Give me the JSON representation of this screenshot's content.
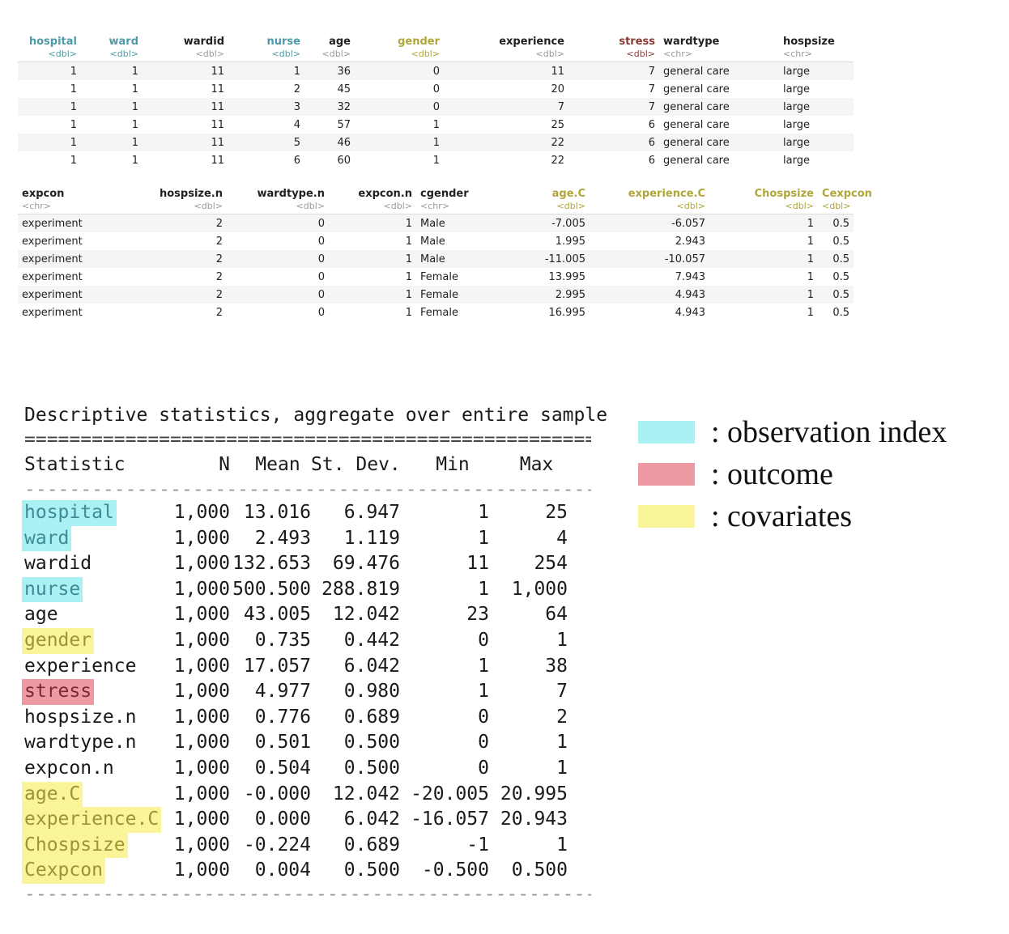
{
  "table1": {
    "columns": [
      {
        "name": "hospital",
        "type": "<dbl>",
        "hl": "obs",
        "align": "r"
      },
      {
        "name": "ward",
        "type": "<dbl>",
        "hl": "obs",
        "align": "r"
      },
      {
        "name": "wardid",
        "type": "<dbl>",
        "hl": "",
        "align": "r"
      },
      {
        "name": "nurse",
        "type": "<dbl>",
        "hl": "obs",
        "align": "r"
      },
      {
        "name": "age",
        "type": "<dbl>",
        "hl": "",
        "align": "r"
      },
      {
        "name": "gender",
        "type": "<dbl>",
        "hl": "cov",
        "align": "r"
      },
      {
        "name": "experience",
        "type": "<dbl>",
        "hl": "",
        "align": "r"
      },
      {
        "name": "stress",
        "type": "<dbl>",
        "hl": "out",
        "align": "r"
      },
      {
        "name": "wardtype",
        "type": "<chr>",
        "hl": "",
        "align": "l"
      },
      {
        "name": "hospsize",
        "type": "<chr>",
        "hl": "",
        "align": "l"
      }
    ],
    "rows": [
      [
        "1",
        "1",
        "11",
        "1",
        "36",
        "0",
        "11",
        "7",
        "general care",
        "large"
      ],
      [
        "1",
        "1",
        "11",
        "2",
        "45",
        "0",
        "20",
        "7",
        "general care",
        "large"
      ],
      [
        "1",
        "1",
        "11",
        "3",
        "32",
        "0",
        "7",
        "7",
        "general care",
        "large"
      ],
      [
        "1",
        "1",
        "11",
        "4",
        "57",
        "1",
        "25",
        "6",
        "general care",
        "large"
      ],
      [
        "1",
        "1",
        "11",
        "5",
        "46",
        "1",
        "22",
        "6",
        "general care",
        "large"
      ],
      [
        "1",
        "1",
        "11",
        "6",
        "60",
        "1",
        "22",
        "6",
        "general care",
        "large"
      ]
    ]
  },
  "table2": {
    "columns": [
      {
        "name": "expcon",
        "type": "<chr>",
        "hl": "",
        "align": "l"
      },
      {
        "name": "hospsize.n",
        "type": "<dbl>",
        "hl": "",
        "align": "r"
      },
      {
        "name": "wardtype.n",
        "type": "<dbl>",
        "hl": "",
        "align": "r"
      },
      {
        "name": "expcon.n",
        "type": "<dbl>",
        "hl": "",
        "align": "r"
      },
      {
        "name": "cgender",
        "type": "<chr>",
        "hl": "",
        "align": "l"
      },
      {
        "name": "age.C",
        "type": "<dbl>",
        "hl": "cov",
        "align": "r"
      },
      {
        "name": "experience.C",
        "type": "<dbl>",
        "hl": "cov",
        "align": "r"
      },
      {
        "name": "Chospsize",
        "type": "<dbl>",
        "hl": "cov",
        "align": "r"
      },
      {
        "name": "Cexpcon",
        "type": "<dbl>",
        "hl": "cov",
        "align": "r"
      }
    ],
    "rows": [
      [
        "experiment",
        "2",
        "0",
        "1",
        "Male",
        "-7.005",
        "-6.057",
        "1",
        "0.5"
      ],
      [
        "experiment",
        "2",
        "0",
        "1",
        "Male",
        "1.995",
        "2.943",
        "1",
        "0.5"
      ],
      [
        "experiment",
        "2",
        "0",
        "1",
        "Male",
        "-11.005",
        "-10.057",
        "1",
        "0.5"
      ],
      [
        "experiment",
        "2",
        "0",
        "1",
        "Female",
        "13.995",
        "7.943",
        "1",
        "0.5"
      ],
      [
        "experiment",
        "2",
        "0",
        "1",
        "Female",
        "2.995",
        "4.943",
        "1",
        "0.5"
      ],
      [
        "experiment",
        "2",
        "0",
        "1",
        "Female",
        "16.995",
        "4.943",
        "1",
        "0.5"
      ]
    ]
  },
  "stats": {
    "title": "Descriptive statistics, aggregate over entire sample",
    "double_rule": "====================================================",
    "dash_rule": "----------------------------------------------------",
    "header": [
      "Statistic",
      "N",
      "Mean",
      "St. Dev.",
      "Min",
      "Max"
    ],
    "rows": [
      {
        "name": "hospital",
        "hl": "obs",
        "vals": [
          "1,000",
          "13.016",
          "6.947",
          "1",
          "25"
        ]
      },
      {
        "name": "ward",
        "hl": "obs",
        "vals": [
          "1,000",
          "2.493",
          "1.119",
          "1",
          "4"
        ]
      },
      {
        "name": "wardid",
        "hl": "",
        "vals": [
          "1,000",
          "132.653",
          "69.476",
          "11",
          "254"
        ]
      },
      {
        "name": "nurse",
        "hl": "obs",
        "vals": [
          "1,000",
          "500.500",
          "288.819",
          "1",
          "1,000"
        ]
      },
      {
        "name": "age",
        "hl": "",
        "vals": [
          "1,000",
          "43.005",
          "12.042",
          "23",
          "64"
        ]
      },
      {
        "name": "gender",
        "hl": "cov",
        "vals": [
          "1,000",
          "0.735",
          "0.442",
          "0",
          "1"
        ]
      },
      {
        "name": "experience",
        "hl": "",
        "vals": [
          "1,000",
          "17.057",
          "6.042",
          "1",
          "38"
        ]
      },
      {
        "name": "stress",
        "hl": "out",
        "vals": [
          "1,000",
          "4.977",
          "0.980",
          "1",
          "7"
        ]
      },
      {
        "name": "hospsize.n",
        "hl": "",
        "vals": [
          "1,000",
          "0.776",
          "0.689",
          "0",
          "2"
        ]
      },
      {
        "name": "wardtype.n",
        "hl": "",
        "vals": [
          "1,000",
          "0.501",
          "0.500",
          "0",
          "1"
        ]
      },
      {
        "name": "expcon.n",
        "hl": "",
        "vals": [
          "1,000",
          "0.504",
          "0.500",
          "0",
          "1"
        ]
      },
      {
        "name": "age.C",
        "hl": "cov",
        "vals": [
          "1,000",
          "-0.000",
          "12.042",
          "-20.005",
          "20.995"
        ]
      },
      {
        "name": "experience.C",
        "hl": "cov",
        "vals": [
          "1,000",
          "0.000",
          "6.042",
          "-16.057",
          "20.943"
        ]
      },
      {
        "name": "Chospsize",
        "hl": "cov",
        "vals": [
          "1,000",
          "-0.224",
          "0.689",
          "-1",
          "1"
        ]
      },
      {
        "name": "Cexpcon",
        "hl": "cov",
        "vals": [
          "1,000",
          "0.004",
          "0.500",
          "-0.500",
          "0.500"
        ]
      }
    ]
  },
  "legend": {
    "items": [
      {
        "label": ": observation index",
        "color": "#a9f1f3"
      },
      {
        "label": ": outcome",
        "color": "#ee9aa4"
      },
      {
        "label": ": covariates",
        "color": "#fbf59a"
      }
    ]
  }
}
